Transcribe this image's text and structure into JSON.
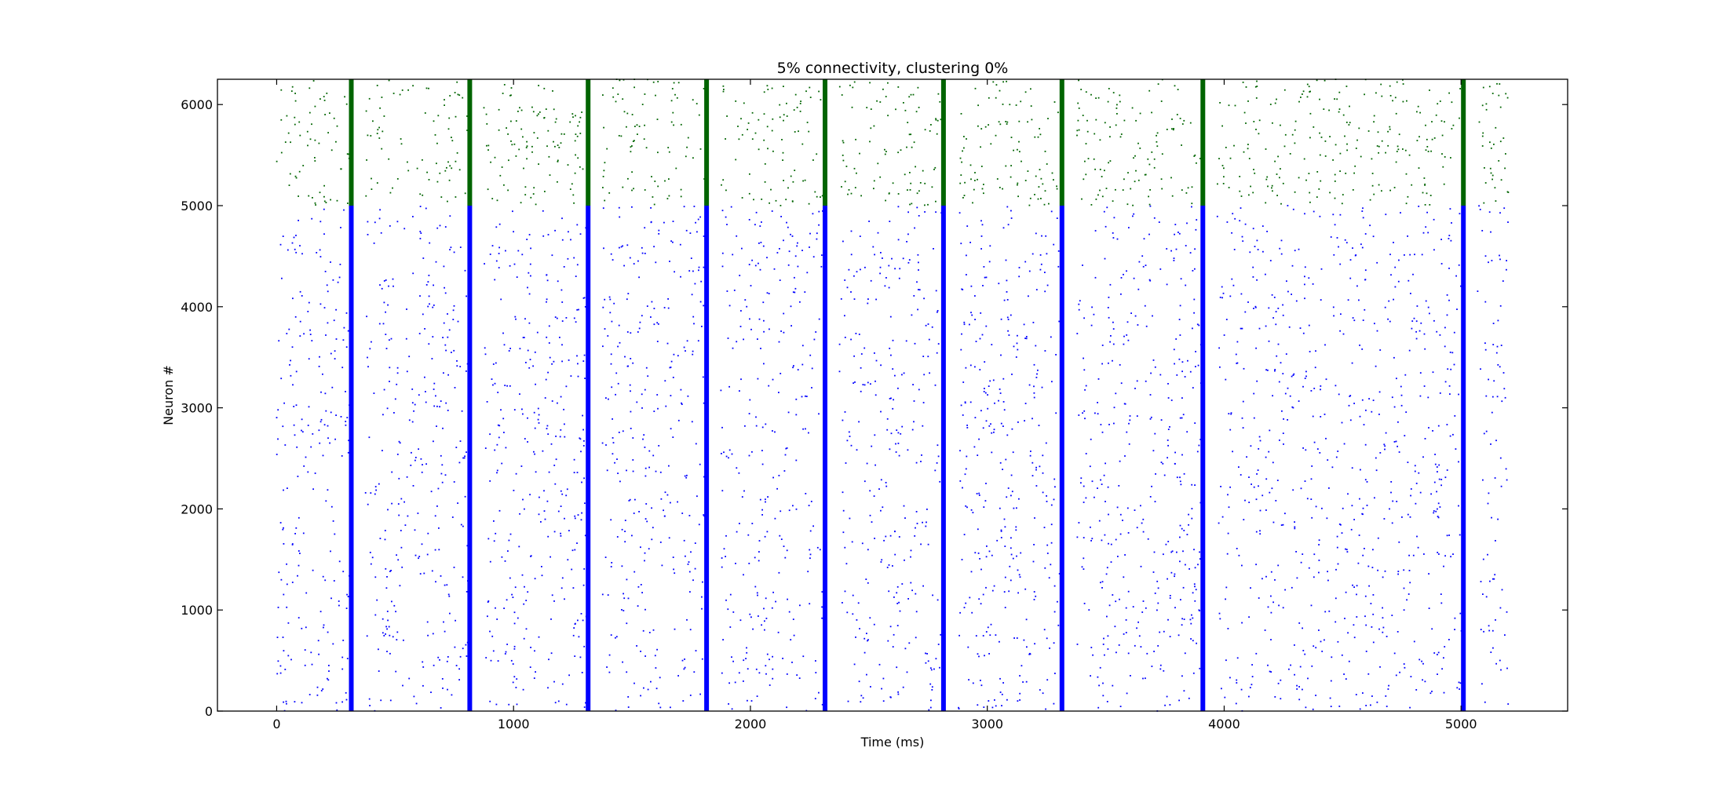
{
  "chart_data": {
    "type": "scatter",
    "title": "5% connectivity, clustering 0%",
    "xlabel": "Time (ms)",
    "ylabel": "Neuron #",
    "xlim": [
      -250,
      5450
    ],
    "ylim": [
      0,
      6250
    ],
    "xticks": [
      0,
      1000,
      2000,
      3000,
      4000,
      5000
    ],
    "yticks": [
      0,
      1000,
      2000,
      3000,
      4000,
      5000,
      6000
    ],
    "grid": false,
    "legend": "none",
    "recording_window_ms": [
      0,
      5200
    ],
    "series": [
      {
        "neuron_range": [
          0,
          5000
        ],
        "color": "#0000ff",
        "background_density_spikes_per_1000ms": 1200
      },
      {
        "neuron_range": [
          5000,
          6250
        ],
        "color": "#006400",
        "background_density_spikes_per_1000ms": 380
      }
    ],
    "synchronous_events_ms": [
      315,
      815,
      1315,
      1815,
      2315,
      2815,
      3315,
      3910,
      5010
    ]
  }
}
